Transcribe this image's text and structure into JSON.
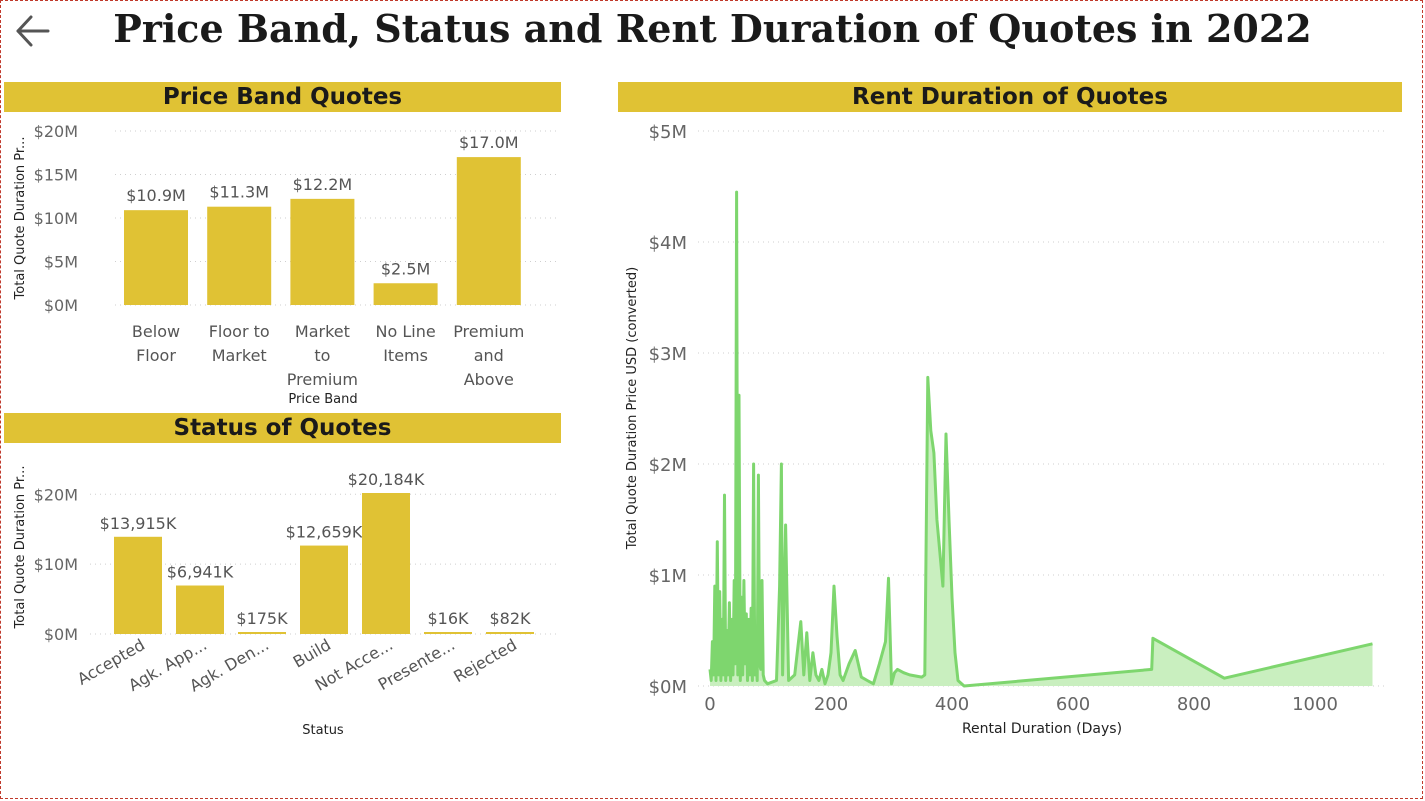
{
  "page": {
    "title": "Price Band, Status and Rent Duration of Quotes in 2022",
    "back_icon": "arrow-left-icon"
  },
  "colors": {
    "header_bg": "#e0c234",
    "bar": "#e0c234",
    "line": "#7ed66e",
    "area": "#c9efbf"
  },
  "chart_data": [
    {
      "id": "price-band",
      "type": "bar",
      "title": "Price Band Quotes",
      "xlabel": "Price Band",
      "ylabel": "Total Quote Duration Pr...",
      "categories": [
        [
          "Below",
          "Floor"
        ],
        [
          "Floor to",
          "Market"
        ],
        [
          "Market",
          "to",
          "Premium"
        ],
        [
          "No Line",
          "Items"
        ],
        [
          "Premium",
          "and",
          "Above"
        ]
      ],
      "values": [
        10.9,
        11.3,
        12.2,
        2.5,
        17.0
      ],
      "data_labels": [
        "$10.9M",
        "$11.3M",
        "$12.2M",
        "$2.5M",
        "$17.0M"
      ],
      "ylim": [
        0,
        20
      ],
      "yticks": [
        0,
        5,
        10,
        15,
        20
      ],
      "ytick_labels": [
        "$0M",
        "$5M",
        "$10M",
        "$15M",
        "$20M"
      ],
      "grid": true
    },
    {
      "id": "status",
      "type": "bar",
      "title": "Status of Quotes",
      "xlabel": "Status",
      "ylabel": "Total Quote Duration Pr...",
      "categories": [
        "Accepted",
        "Agk. App...",
        "Agk. Den...",
        "Build",
        "Not Acce...",
        "Presente...",
        "Rejected"
      ],
      "values": [
        13915,
        6941,
        175,
        12659,
        20184,
        16,
        82
      ],
      "data_labels": [
        "$13,915K",
        "$6,941K",
        "$175K",
        "$12,659K",
        "$20,184K",
        "$16K",
        "$82K"
      ],
      "ylim": [
        0,
        20184
      ],
      "yticks": [
        0,
        10000,
        20000
      ],
      "ytick_labels": [
        "$0M",
        "$10M",
        "$20M"
      ],
      "grid": true
    },
    {
      "id": "rent-duration",
      "type": "area",
      "title": "Rent Duration of Quotes",
      "xlabel": "Rental Duration (Days)",
      "ylabel": "Total Quote Duration Price USD (converted)",
      "xlim": [
        -10,
        1100
      ],
      "ylim": [
        0,
        5
      ],
      "xticks": [
        0,
        200,
        400,
        600,
        800,
        1000
      ],
      "xtick_labels": [
        "0",
        "200",
        "400",
        "600",
        "800",
        "1000"
      ],
      "yticks": [
        0,
        1,
        2,
        3,
        4,
        5
      ],
      "ytick_labels": [
        "$0M",
        "$1M",
        "$2M",
        "$3M",
        "$4M",
        "$5M"
      ],
      "grid": true,
      "series": [
        {
          "x": [
            0,
            2,
            4,
            6,
            8,
            10,
            12,
            14,
            16,
            18,
            20,
            22,
            24,
            26,
            28,
            30,
            32,
            34,
            36,
            38,
            40,
            42,
            44,
            46,
            48,
            50,
            52,
            54,
            56,
            58,
            60,
            62,
            64,
            66,
            68,
            70,
            72,
            74,
            76,
            78,
            80,
            82,
            84,
            86,
            88,
            90,
            95,
            100,
            110,
            115,
            118,
            120,
            125,
            130,
            140,
            150,
            155,
            160,
            165,
            170,
            175,
            180,
            185,
            190,
            195,
            200,
            205,
            210,
            215,
            220,
            230,
            240,
            250,
            260,
            270,
            280,
            290,
            295,
            300,
            305,
            310,
            320,
            330,
            340,
            350,
            355,
            360,
            365,
            370,
            375,
            380,
            385,
            390,
            395,
            400,
            405,
            410,
            420,
            730,
            732,
            850,
            1095
          ],
          "y": [
            0.15,
            0.05,
            0.4,
            0.1,
            0.9,
            0.05,
            1.3,
            0.1,
            0.85,
            0.05,
            0.6,
            0.1,
            1.72,
            0.05,
            0.5,
            0.1,
            0.75,
            0.05,
            0.6,
            0.1,
            0.95,
            0.2,
            4.45,
            0.1,
            2.62,
            0.05,
            0.8,
            0.1,
            0.95,
            0.2,
            0.65,
            0.05,
            0.6,
            0.1,
            0.7,
            0.05,
            2.0,
            0.1,
            0.3,
            0.05,
            1.9,
            0.2,
            0.15,
            0.95,
            0.1,
            0.05,
            0.02,
            0.03,
            0.05,
            0.9,
            2.0,
            0.1,
            1.45,
            0.05,
            0.1,
            0.58,
            0.1,
            0.48,
            0.05,
            0.3,
            0.1,
            0.05,
            0.15,
            0.02,
            0.1,
            0.3,
            0.9,
            0.45,
            0.1,
            0.05,
            0.2,
            0.32,
            0.08,
            0.05,
            0.02,
            0.2,
            0.4,
            0.97,
            0.02,
            0.12,
            0.15,
            0.12,
            0.1,
            0.09,
            0.08,
            0.1,
            2.78,
            2.3,
            2.1,
            1.5,
            1.2,
            0.9,
            2.27,
            1.5,
            0.8,
            0.3,
            0.05,
            0.0,
            0.15,
            0.43,
            0.07,
            0.38
          ]
        }
      ]
    }
  ]
}
